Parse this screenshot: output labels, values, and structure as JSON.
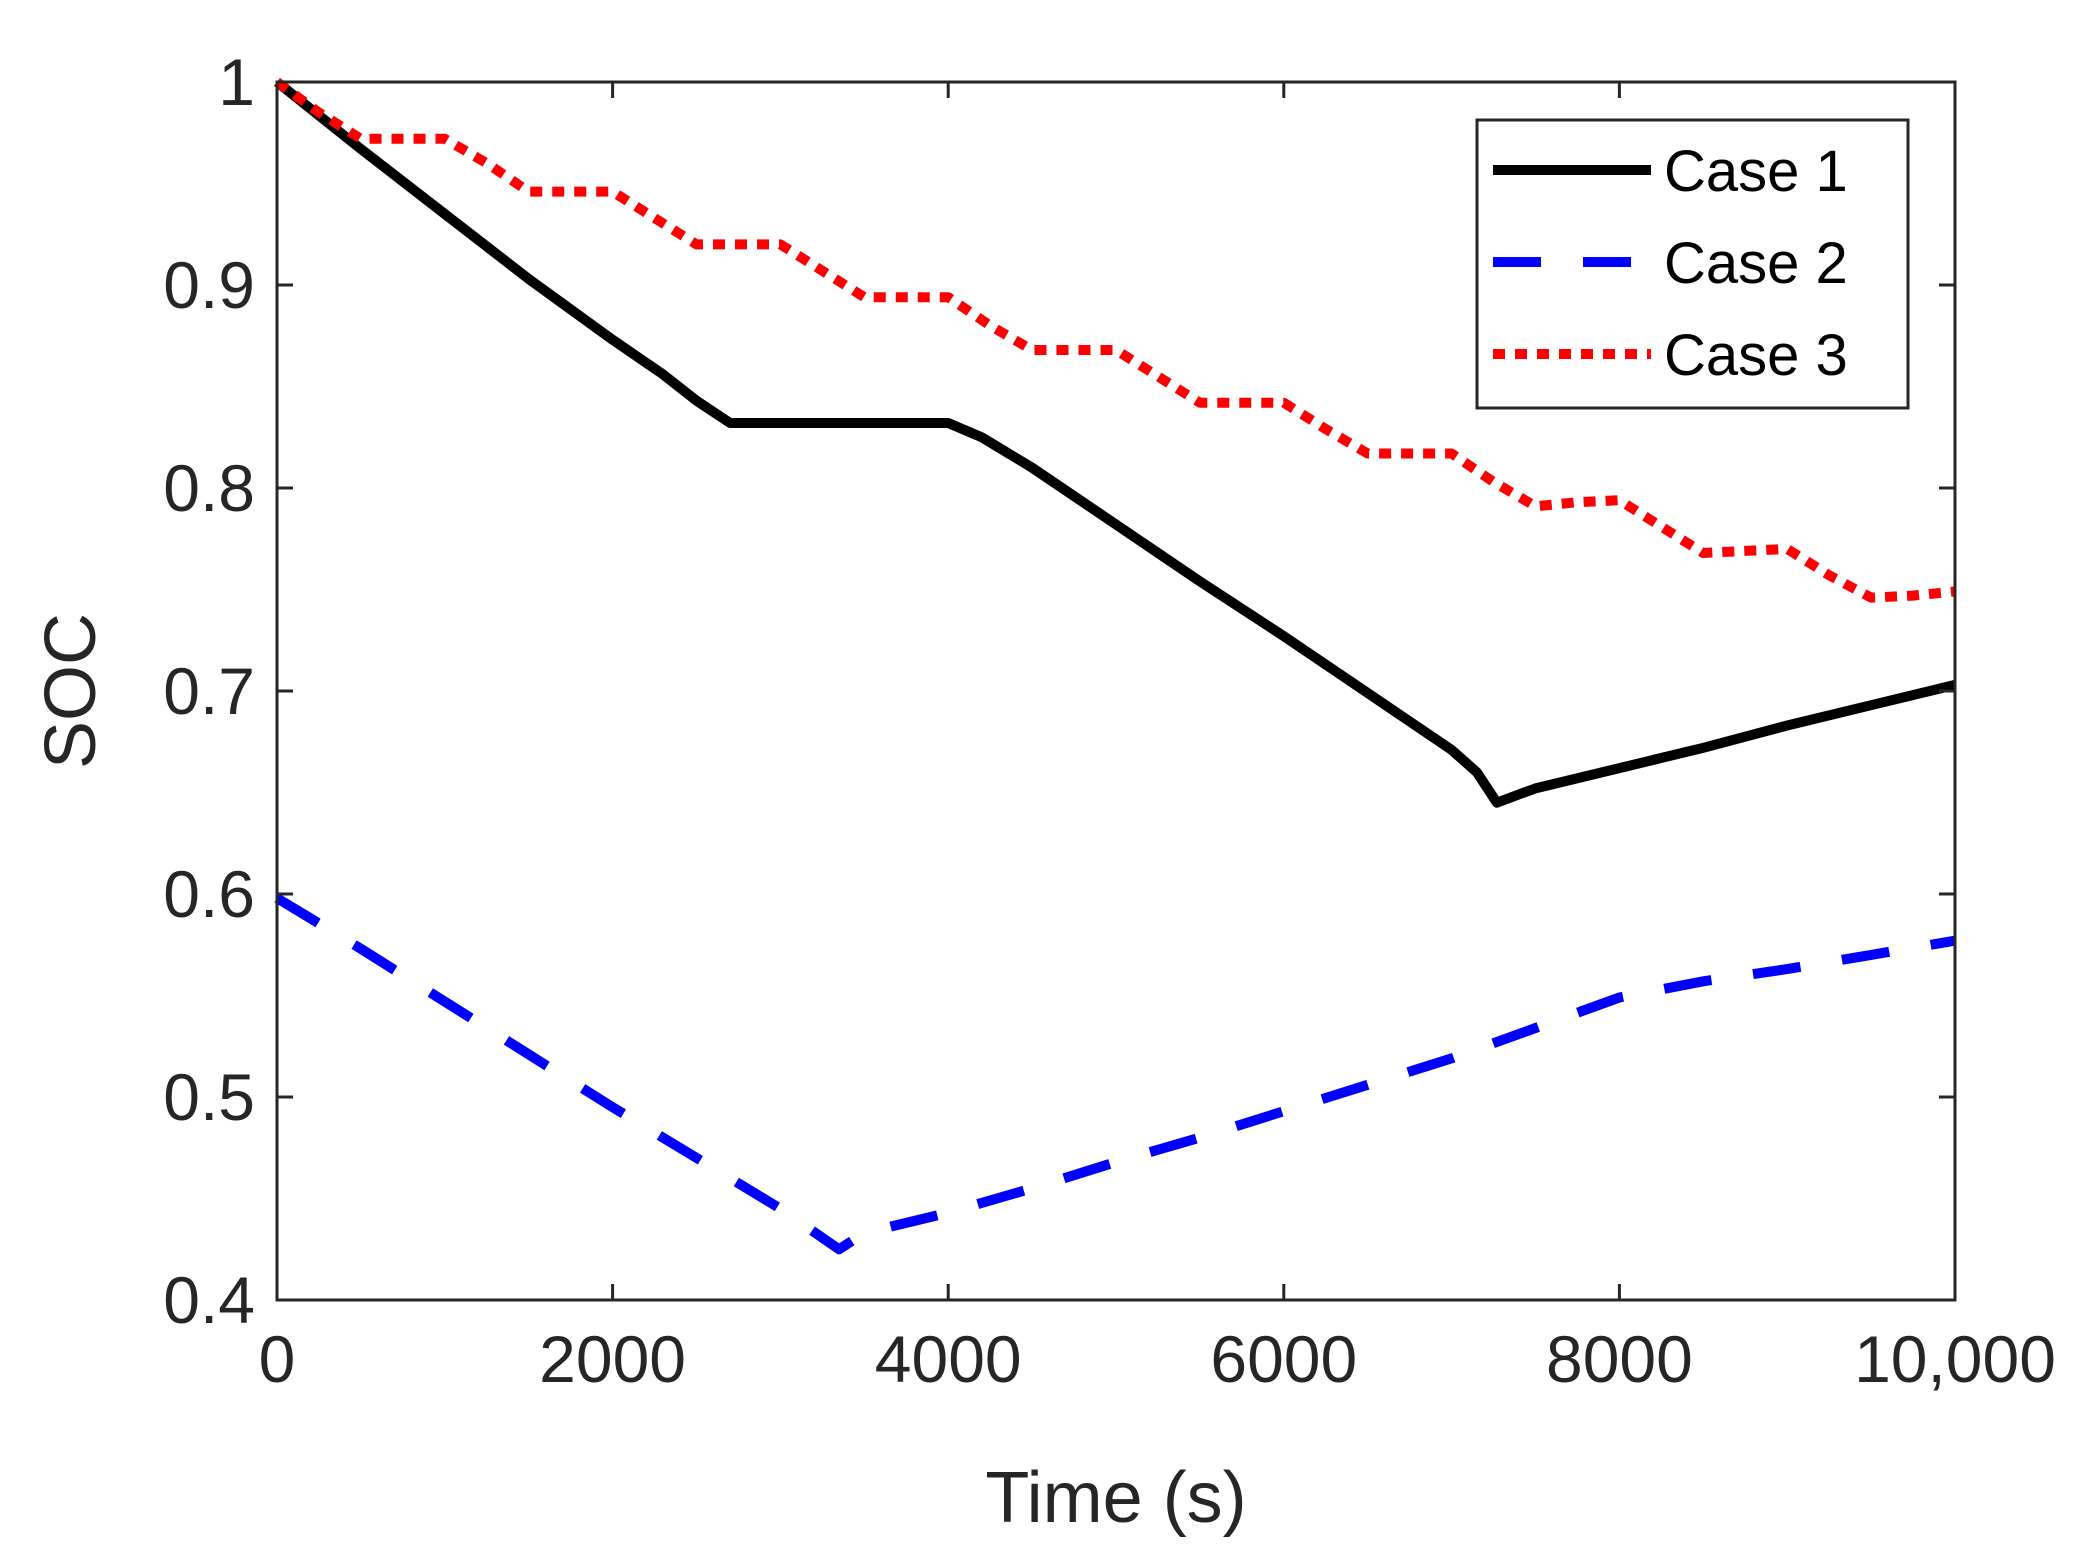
{
  "chart_data": {
    "type": "line",
    "title": "",
    "xlabel": "Time (s)",
    "ylabel": "SOC",
    "xlim": [
      0,
      10000
    ],
    "ylim": [
      0.4,
      1.0
    ],
    "xticks": [
      0,
      2000,
      4000,
      6000,
      8000,
      10000
    ],
    "xtick_labels": [
      "0",
      "2000",
      "4000",
      "6000",
      "8000",
      "10,000"
    ],
    "yticks": [
      0.4,
      0.5,
      0.6,
      0.7,
      0.8,
      0.9,
      1.0
    ],
    "ytick_labels": [
      "0.4",
      "0.5",
      "0.6",
      "0.7",
      "0.8",
      "0.9",
      "1"
    ],
    "grid": false,
    "legend_position": "top-right",
    "series": [
      {
        "name": "Case 1",
        "color": "#000000",
        "style": "solid",
        "x": [
          0,
          500,
          1000,
          1500,
          2000,
          2300,
          2500,
          2700,
          3000,
          3500,
          4000,
          4200,
          4500,
          5000,
          5500,
          6000,
          6500,
          7000,
          7150,
          7270,
          7400,
          7500,
          8000,
          8500,
          9000,
          9500,
          10000
        ],
        "y": [
          1.0,
          0.967,
          0.935,
          0.903,
          0.873,
          0.856,
          0.843,
          0.832,
          0.832,
          0.832,
          0.832,
          0.825,
          0.81,
          0.782,
          0.754,
          0.727,
          0.699,
          0.671,
          0.66,
          0.645,
          0.649,
          0.652,
          0.662,
          0.672,
          0.683,
          0.693,
          0.703
        ]
      },
      {
        "name": "Case 2",
        "color": "#0000ff",
        "style": "dashed",
        "x": [
          0,
          500,
          1000,
          1500,
          2000,
          2500,
          3000,
          3350,
          3500,
          4000,
          4500,
          5000,
          5500,
          6000,
          6500,
          7000,
          7500,
          8000,
          8500,
          9000,
          9500,
          10000
        ],
        "y": [
          0.598,
          0.573,
          0.547,
          0.521,
          0.495,
          0.47,
          0.445,
          0.425,
          0.433,
          0.443,
          0.455,
          0.468,
          0.48,
          0.493,
          0.506,
          0.519,
          0.534,
          0.549,
          0.557,
          0.563,
          0.57,
          0.577
        ]
      },
      {
        "name": "Case 3",
        "color": "#ff0000",
        "style": "dotted",
        "x": [
          0,
          250,
          500,
          750,
          1000,
          1250,
          1500,
          1750,
          2000,
          2250,
          2500,
          2750,
          3000,
          3250,
          3500,
          3750,
          4000,
          4250,
          4500,
          4750,
          5000,
          5250,
          5500,
          5750,
          6000,
          6250,
          6500,
          6750,
          7000,
          7250,
          7500,
          7750,
          8000,
          8250,
          8500,
          8750,
          9000,
          9250,
          9500,
          9750,
          10000
        ],
        "y": [
          1.0,
          0.985,
          0.972,
          0.972,
          0.972,
          0.96,
          0.946,
          0.946,
          0.946,
          0.933,
          0.92,
          0.92,
          0.92,
          0.907,
          0.894,
          0.894,
          0.894,
          0.88,
          0.868,
          0.868,
          0.868,
          0.855,
          0.842,
          0.842,
          0.842,
          0.829,
          0.817,
          0.817,
          0.817,
          0.803,
          0.791,
          0.793,
          0.794,
          0.781,
          0.768,
          0.769,
          0.77,
          0.757,
          0.746,
          0.747,
          0.749
        ]
      }
    ]
  }
}
